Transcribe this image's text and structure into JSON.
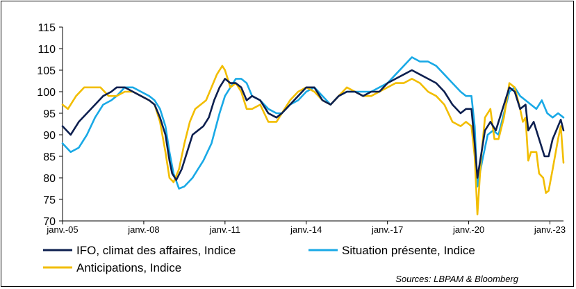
{
  "chart_data": {
    "type": "line",
    "title": "",
    "xlabel": "",
    "ylabel": "",
    "ylim": [
      70,
      115
    ],
    "yticks": [
      70,
      75,
      80,
      85,
      90,
      95,
      100,
      105,
      110,
      115
    ],
    "xlim": [
      2005.0,
      2023.5
    ],
    "xticks": [
      {
        "value": 2005.0,
        "label": "janv.-05"
      },
      {
        "value": 2008.0,
        "label": "janv.-08"
      },
      {
        "value": 2011.0,
        "label": "janv.-11"
      },
      {
        "value": 2014.0,
        "label": "janv.-14"
      },
      {
        "value": 2017.0,
        "label": "janv.-17"
      },
      {
        "value": 2020.0,
        "label": "janv.-20"
      },
      {
        "value": 2023.0,
        "label": "janv.-23"
      }
    ],
    "series": [
      {
        "name": "IFO, climat des affaires,  Indice",
        "color": "#0d1f4f",
        "points": [
          [
            2005.0,
            92
          ],
          [
            2005.3,
            90
          ],
          [
            2005.6,
            93
          ],
          [
            2005.9,
            95
          ],
          [
            2006.2,
            97
          ],
          [
            2006.5,
            99
          ],
          [
            2006.8,
            100
          ],
          [
            2007.0,
            101
          ],
          [
            2007.3,
            101
          ],
          [
            2007.6,
            100
          ],
          [
            2007.9,
            99
          ],
          [
            2008.2,
            98
          ],
          [
            2008.4,
            97
          ],
          [
            2008.6,
            94
          ],
          [
            2008.8,
            90
          ],
          [
            2008.95,
            84
          ],
          [
            2009.05,
            81
          ],
          [
            2009.2,
            79.5
          ],
          [
            2009.4,
            82
          ],
          [
            2009.6,
            86
          ],
          [
            2009.8,
            90
          ],
          [
            2010.0,
            91
          ],
          [
            2010.2,
            92
          ],
          [
            2010.4,
            94
          ],
          [
            2010.6,
            98
          ],
          [
            2010.8,
            101
          ],
          [
            2011.0,
            103
          ],
          [
            2011.2,
            102
          ],
          [
            2011.4,
            102
          ],
          [
            2011.6,
            101
          ],
          [
            2011.8,
            98
          ],
          [
            2012.0,
            99
          ],
          [
            2012.3,
            98
          ],
          [
            2012.6,
            95
          ],
          [
            2012.9,
            94
          ],
          [
            2013.1,
            95
          ],
          [
            2013.4,
            97
          ],
          [
            2013.7,
            99
          ],
          [
            2014.0,
            101
          ],
          [
            2014.3,
            101
          ],
          [
            2014.6,
            98
          ],
          [
            2014.9,
            97
          ],
          [
            2015.2,
            99
          ],
          [
            2015.5,
            100
          ],
          [
            2015.8,
            100
          ],
          [
            2016.1,
            99
          ],
          [
            2016.4,
            100
          ],
          [
            2016.7,
            100
          ],
          [
            2017.0,
            102
          ],
          [
            2017.3,
            103
          ],
          [
            2017.6,
            104
          ],
          [
            2017.9,
            105
          ],
          [
            2018.2,
            104
          ],
          [
            2018.5,
            103
          ],
          [
            2018.8,
            102
          ],
          [
            2019.1,
            100
          ],
          [
            2019.4,
            97
          ],
          [
            2019.7,
            95
          ],
          [
            2019.9,
            96
          ],
          [
            2020.1,
            96
          ],
          [
            2020.22,
            88
          ],
          [
            2020.32,
            80
          ],
          [
            2020.45,
            85
          ],
          [
            2020.6,
            91
          ],
          [
            2020.8,
            93
          ],
          [
            2021.0,
            91
          ],
          [
            2021.2,
            95
          ],
          [
            2021.4,
            99
          ],
          [
            2021.5,
            101
          ],
          [
            2021.7,
            100
          ],
          [
            2021.9,
            96
          ],
          [
            2022.1,
            97
          ],
          [
            2022.2,
            91
          ],
          [
            2022.4,
            93
          ],
          [
            2022.6,
            89
          ],
          [
            2022.8,
            85
          ],
          [
            2022.95,
            85
          ],
          [
            2023.1,
            89
          ],
          [
            2023.3,
            92
          ],
          [
            2023.4,
            93.5
          ],
          [
            2023.5,
            91
          ]
        ]
      },
      {
        "name": "Situation présente, Indice",
        "color": "#19a9e6",
        "points": [
          [
            2005.0,
            88
          ],
          [
            2005.3,
            86
          ],
          [
            2005.6,
            87
          ],
          [
            2005.9,
            90
          ],
          [
            2006.2,
            94
          ],
          [
            2006.5,
            97
          ],
          [
            2006.8,
            98
          ],
          [
            2007.0,
            99
          ],
          [
            2007.3,
            101
          ],
          [
            2007.6,
            101
          ],
          [
            2007.9,
            100
          ],
          [
            2008.2,
            99
          ],
          [
            2008.4,
            98
          ],
          [
            2008.6,
            96
          ],
          [
            2008.8,
            92
          ],
          [
            2008.95,
            86
          ],
          [
            2009.1,
            81
          ],
          [
            2009.3,
            77.5
          ],
          [
            2009.5,
            78
          ],
          [
            2009.8,
            80
          ],
          [
            2010.0,
            82
          ],
          [
            2010.2,
            84
          ],
          [
            2010.5,
            88
          ],
          [
            2010.8,
            95
          ],
          [
            2011.0,
            99
          ],
          [
            2011.2,
            101
          ],
          [
            2011.4,
            103
          ],
          [
            2011.6,
            103
          ],
          [
            2011.8,
            102
          ],
          [
            2012.0,
            99
          ],
          [
            2012.3,
            98
          ],
          [
            2012.6,
            96
          ],
          [
            2012.9,
            95
          ],
          [
            2013.1,
            95
          ],
          [
            2013.4,
            97
          ],
          [
            2013.7,
            98
          ],
          [
            2014.0,
            100
          ],
          [
            2014.3,
            101
          ],
          [
            2014.6,
            99
          ],
          [
            2014.9,
            97
          ],
          [
            2015.2,
            99
          ],
          [
            2015.5,
            100
          ],
          [
            2015.8,
            100
          ],
          [
            2016.1,
            100
          ],
          [
            2016.4,
            100
          ],
          [
            2016.7,
            101
          ],
          [
            2017.0,
            102
          ],
          [
            2017.3,
            104
          ],
          [
            2017.6,
            106
          ],
          [
            2017.9,
            108
          ],
          [
            2018.2,
            107
          ],
          [
            2018.5,
            107
          ],
          [
            2018.8,
            106
          ],
          [
            2019.1,
            104
          ],
          [
            2019.4,
            102
          ],
          [
            2019.7,
            100
          ],
          [
            2019.9,
            99
          ],
          [
            2020.1,
            99
          ],
          [
            2020.22,
            92
          ],
          [
            2020.32,
            78
          ],
          [
            2020.5,
            84
          ],
          [
            2020.7,
            90
          ],
          [
            2020.9,
            91
          ],
          [
            2021.1,
            90
          ],
          [
            2021.3,
            95
          ],
          [
            2021.5,
            100
          ],
          [
            2021.7,
            101
          ],
          [
            2021.9,
            99
          ],
          [
            2022.1,
            98
          ],
          [
            2022.3,
            97
          ],
          [
            2022.5,
            96
          ],
          [
            2022.7,
            98
          ],
          [
            2022.9,
            95
          ],
          [
            2023.1,
            94
          ],
          [
            2023.3,
            95
          ],
          [
            2023.5,
            94
          ]
        ]
      },
      {
        "name": "Anticipations, Indice",
        "color": "#f2bd00",
        "points": [
          [
            2005.0,
            97
          ],
          [
            2005.2,
            96
          ],
          [
            2005.5,
            99
          ],
          [
            2005.8,
            101
          ],
          [
            2006.1,
            101
          ],
          [
            2006.4,
            101
          ],
          [
            2006.7,
            99
          ],
          [
            2007.0,
            99
          ],
          [
            2007.3,
            100
          ],
          [
            2007.6,
            100
          ],
          [
            2007.9,
            99
          ],
          [
            2008.2,
            98
          ],
          [
            2008.4,
            97
          ],
          [
            2008.6,
            93
          ],
          [
            2008.8,
            86
          ],
          [
            2008.95,
            80
          ],
          [
            2009.1,
            79
          ],
          [
            2009.3,
            82
          ],
          [
            2009.5,
            88
          ],
          [
            2009.7,
            93
          ],
          [
            2009.9,
            96
          ],
          [
            2010.1,
            97
          ],
          [
            2010.3,
            98
          ],
          [
            2010.5,
            101
          ],
          [
            2010.7,
            104
          ],
          [
            2010.9,
            106
          ],
          [
            2011.0,
            105
          ],
          [
            2011.2,
            101
          ],
          [
            2011.4,
            102
          ],
          [
            2011.6,
            100
          ],
          [
            2011.8,
            96
          ],
          [
            2012.0,
            96
          ],
          [
            2012.3,
            97
          ],
          [
            2012.6,
            93
          ],
          [
            2012.9,
            93
          ],
          [
            2013.1,
            95
          ],
          [
            2013.4,
            98
          ],
          [
            2013.7,
            100
          ],
          [
            2014.0,
            101
          ],
          [
            2014.3,
            100
          ],
          [
            2014.6,
            98
          ],
          [
            2014.9,
            97
          ],
          [
            2015.2,
            99
          ],
          [
            2015.5,
            101
          ],
          [
            2015.8,
            100
          ],
          [
            2016.1,
            99
          ],
          [
            2016.4,
            99
          ],
          [
            2016.7,
            100
          ],
          [
            2017.0,
            101
          ],
          [
            2017.3,
            102
          ],
          [
            2017.6,
            102
          ],
          [
            2017.9,
            103
          ],
          [
            2018.2,
            102
          ],
          [
            2018.5,
            100
          ],
          [
            2018.8,
            99
          ],
          [
            2019.1,
            97
          ],
          [
            2019.4,
            93
          ],
          [
            2019.7,
            92
          ],
          [
            2019.9,
            93
          ],
          [
            2020.1,
            92
          ],
          [
            2020.22,
            85
          ],
          [
            2020.32,
            71.5
          ],
          [
            2020.45,
            84
          ],
          [
            2020.6,
            94
          ],
          [
            2020.8,
            96
          ],
          [
            2020.95,
            89
          ],
          [
            2021.1,
            89
          ],
          [
            2021.3,
            94
          ],
          [
            2021.5,
            102
          ],
          [
            2021.7,
            101
          ],
          [
            2021.9,
            96
          ],
          [
            2022.0,
            93
          ],
          [
            2022.1,
            94
          ],
          [
            2022.2,
            84
          ],
          [
            2022.3,
            86
          ],
          [
            2022.5,
            86
          ],
          [
            2022.6,
            81
          ],
          [
            2022.75,
            80
          ],
          [
            2022.85,
            76.5
          ],
          [
            2022.95,
            77
          ],
          [
            2023.1,
            82
          ],
          [
            2023.3,
            89
          ],
          [
            2023.4,
            92
          ],
          [
            2023.5,
            83.5
          ]
        ]
      }
    ],
    "legend_position": "bottom",
    "annotation": "Sources: LBPAM & Bloomberg"
  }
}
